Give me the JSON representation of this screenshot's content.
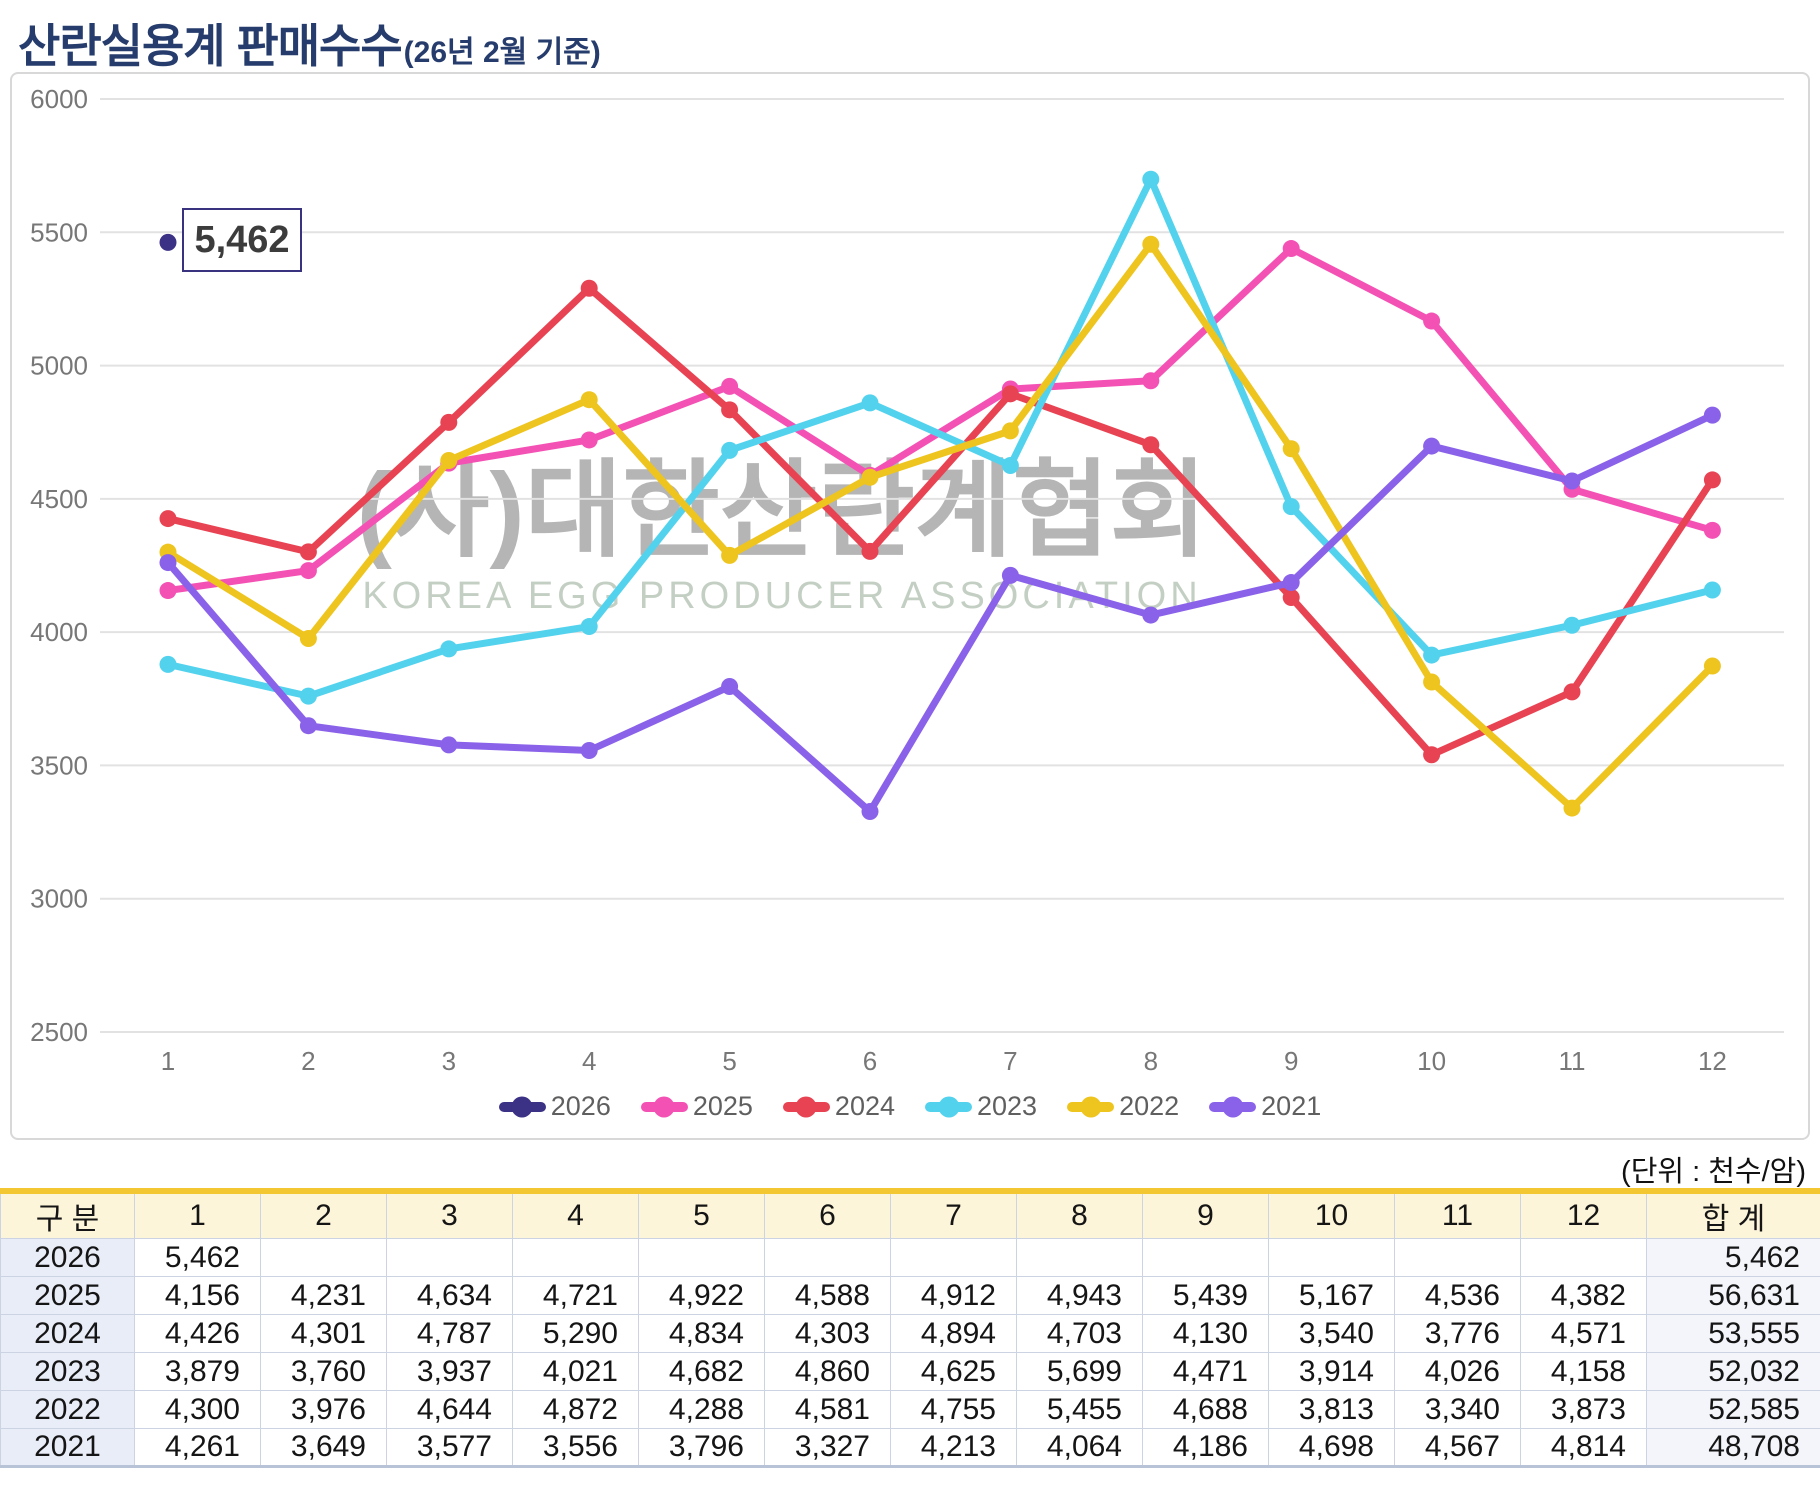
{
  "title": {
    "main": "산란실용계 판매수수",
    "suffix": "(26년 2월 기준)"
  },
  "watermark": {
    "line1": "(사)대한산란계협회",
    "line2": "KOREA EGG PRODUCER ASSOCIATION"
  },
  "annotation": {
    "label": "5,462"
  },
  "unit_note": "(단위 : 천수/암)",
  "colors": {
    "title": "#263c6c",
    "grid": "#e2e2e2",
    "axis_text": "#777777",
    "table_top_border": "#f2c732",
    "table_header_bg": "#fdf5d9",
    "table_year_bg": "#e9edf8",
    "table_total_bg": "#f3f5fb"
  },
  "chart_data": {
    "type": "line",
    "x": [
      1,
      2,
      3,
      4,
      5,
      6,
      7,
      8,
      9,
      10,
      11,
      12
    ],
    "series": [
      {
        "name": "2026",
        "color": "#3b3185",
        "values": [
          5462,
          null,
          null,
          null,
          null,
          null,
          null,
          null,
          null,
          null,
          null,
          null
        ]
      },
      {
        "name": "2025",
        "color": "#f451b4",
        "values": [
          4156,
          4231,
          4634,
          4721,
          4922,
          4588,
          4912,
          4943,
          5439,
          5167,
          4536,
          4382
        ]
      },
      {
        "name": "2024",
        "color": "#e84352",
        "values": [
          4426,
          4301,
          4787,
          5290,
          4834,
          4303,
          4894,
          4703,
          4130,
          3540,
          3776,
          4571
        ]
      },
      {
        "name": "2023",
        "color": "#53d2ee",
        "values": [
          3879,
          3760,
          3937,
          4021,
          4682,
          4860,
          4625,
          5699,
          4471,
          3914,
          4026,
          4158
        ]
      },
      {
        "name": "2022",
        "color": "#eec41f",
        "values": [
          4300,
          3976,
          4644,
          4872,
          4288,
          4581,
          4755,
          5455,
          4688,
          3813,
          3340,
          3873
        ]
      },
      {
        "name": "2021",
        "color": "#8a62e9",
        "values": [
          4261,
          3649,
          3577,
          3556,
          3796,
          3327,
          4213,
          4064,
          4186,
          4698,
          4567,
          4814
        ]
      }
    ],
    "ylim": [
      2500,
      6000
    ],
    "ytick_step": 500,
    "grid": true,
    "legend_position": "bottom",
    "annotation_value": 5462
  },
  "table": {
    "headers": [
      "구 분",
      "1",
      "2",
      "3",
      "4",
      "5",
      "6",
      "7",
      "8",
      "9",
      "10",
      "11",
      "12",
      "합 계"
    ],
    "rows": [
      {
        "label": "2026",
        "values": [
          "5,462",
          "",
          "",
          "",
          "",
          "",
          "",
          "",
          "",
          "",
          "",
          ""
        ],
        "total": "5,462"
      },
      {
        "label": "2025",
        "values": [
          "4,156",
          "4,231",
          "4,634",
          "4,721",
          "4,922",
          "4,588",
          "4,912",
          "4,943",
          "5,439",
          "5,167",
          "4,536",
          "4,382"
        ],
        "total": "56,631"
      },
      {
        "label": "2024",
        "values": [
          "4,426",
          "4,301",
          "4,787",
          "5,290",
          "4,834",
          "4,303",
          "4,894",
          "4,703",
          "4,130",
          "3,540",
          "3,776",
          "4,571"
        ],
        "total": "53,555"
      },
      {
        "label": "2023",
        "values": [
          "3,879",
          "3,760",
          "3,937",
          "4,021",
          "4,682",
          "4,860",
          "4,625",
          "5,699",
          "4,471",
          "3,914",
          "4,026",
          "4,158"
        ],
        "total": "52,032"
      },
      {
        "label": "2022",
        "values": [
          "4,300",
          "3,976",
          "4,644",
          "4,872",
          "4,288",
          "4,581",
          "4,755",
          "5,455",
          "4,688",
          "3,813",
          "3,340",
          "3,873"
        ],
        "total": "52,585"
      },
      {
        "label": "2021",
        "values": [
          "4,261",
          "3,649",
          "3,577",
          "3,556",
          "3,796",
          "3,327",
          "4,213",
          "4,064",
          "4,186",
          "4,698",
          "4,567",
          "4,814"
        ],
        "total": "48,708"
      }
    ]
  }
}
